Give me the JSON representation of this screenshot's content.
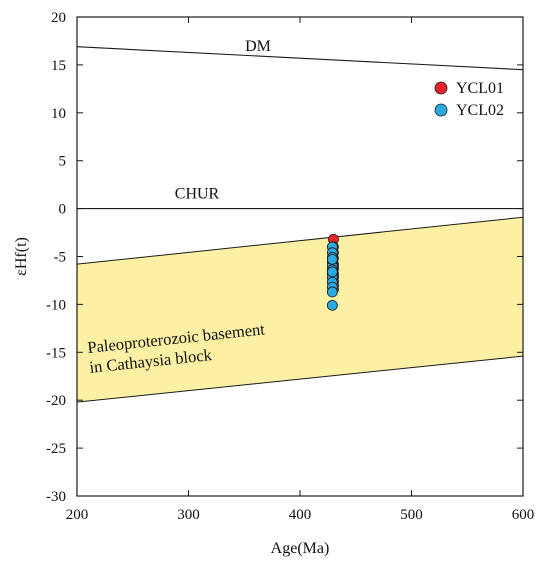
{
  "chart_data": {
    "type": "scatter",
    "xlabel": "Age(Ma)",
    "ylabel": "εHf(t)",
    "xlim": [
      200,
      600
    ],
    "ylim": [
      -30,
      20
    ],
    "xticks": [
      "200",
      "300",
      "400",
      "500",
      "600"
    ],
    "yticks": [
      "-30",
      "-25",
      "-20",
      "-15",
      "-10",
      "-5",
      "0",
      "5",
      "10",
      "15",
      "20"
    ],
    "grid": false,
    "legend_position": "top-right",
    "reference_lines": [
      {
        "label": "DM",
        "x": [
          200,
          600
        ],
        "y": [
          16.9,
          14.5
        ]
      },
      {
        "label": "CHUR",
        "x": [
          200,
          600
        ],
        "y": [
          0,
          0
        ]
      }
    ],
    "field": {
      "label_lines": [
        "Paleoproterozoic basement",
        "in Cathaysia block"
      ],
      "color": "#fbf0a3",
      "upper": {
        "x": [
          200,
          600
        ],
        "y": [
          -5.8,
          -0.9
        ]
      },
      "lower": {
        "x": [
          200,
          600
        ],
        "y": [
          -20.2,
          -15.4
        ]
      }
    },
    "series": [
      {
        "name": "YCL01",
        "color": "#e8232a",
        "x": [
          430,
          430,
          430,
          430,
          430,
          430,
          430,
          430,
          430,
          430,
          430,
          430,
          430
        ],
        "y": [
          -3.2,
          -4.0,
          -4.6,
          -5.2,
          -5.8,
          -6.3,
          -6.8,
          -7.2,
          -7.6,
          -8.0,
          -8.4,
          -6.0,
          -7.0
        ]
      },
      {
        "name": "YCL02",
        "color": "#29aae2",
        "x": [
          429,
          429,
          429,
          429,
          429,
          429,
          429,
          429,
          429,
          429,
          429,
          429,
          429,
          429
        ],
        "y": [
          -4.0,
          -4.6,
          -5.1,
          -5.6,
          -6.0,
          -6.4,
          -6.8,
          -7.2,
          -7.7,
          -8.2,
          -8.7,
          -10.1,
          -5.3,
          -6.6
        ]
      }
    ]
  }
}
